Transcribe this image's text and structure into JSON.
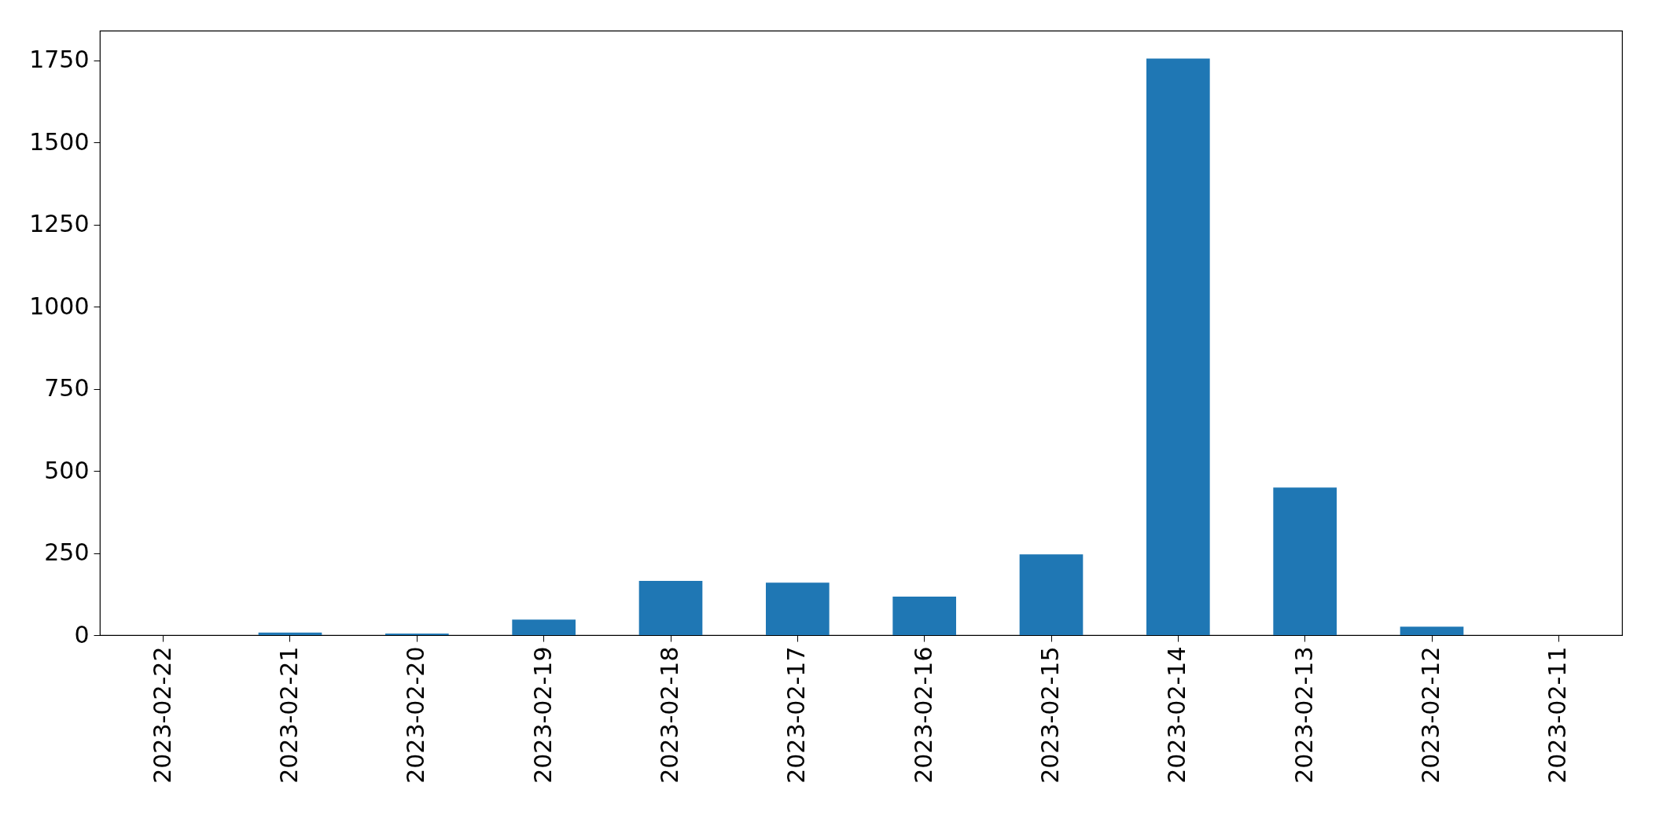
{
  "chart_data": {
    "type": "bar",
    "categories": [
      "2023-02-22",
      "2023-02-21",
      "2023-02-20",
      "2023-02-19",
      "2023-02-18",
      "2023-02-17",
      "2023-02-16",
      "2023-02-15",
      "2023-02-14",
      "2023-02-13",
      "2023-02-12",
      "2023-02-11"
    ],
    "values": [
      0,
      8,
      5,
      47,
      165,
      160,
      117,
      246,
      1755,
      449,
      26,
      0
    ],
    "color": "#1f77b4",
    "ylim": [
      0,
      1840
    ],
    "yticks": [
      0,
      250,
      500,
      750,
      1000,
      1250,
      1500,
      1750
    ],
    "grid": false
  }
}
